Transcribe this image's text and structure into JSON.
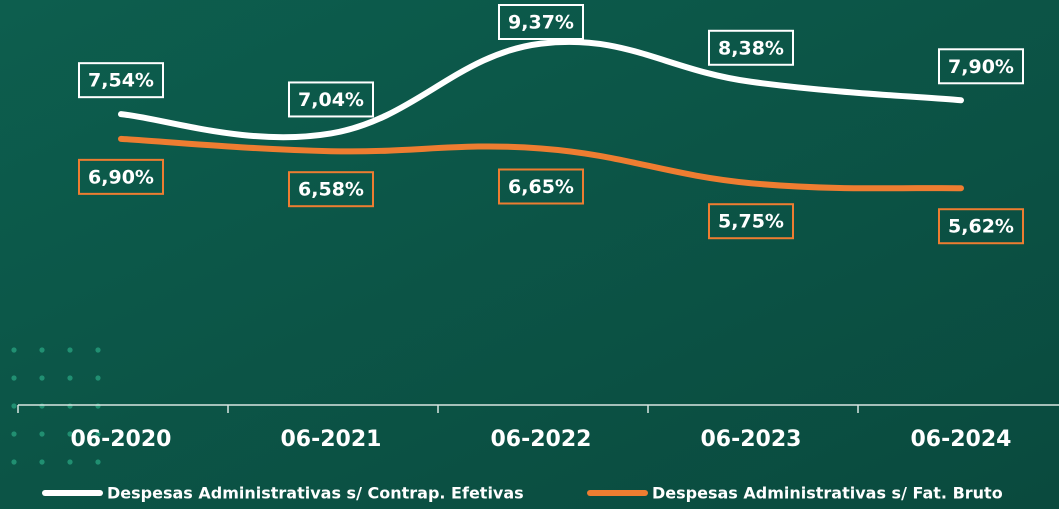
{
  "chart_data": {
    "type": "line",
    "categories": [
      "06-2020",
      "06-2021",
      "06-2022",
      "06-2023",
      "06-2024"
    ],
    "series": [
      {
        "name": "Despesas Administrativas s/ Contrap. Efetivas",
        "color": "#ffffff",
        "values": [
          7.54,
          7.04,
          9.37,
          8.38,
          7.9
        ],
        "value_labels": [
          "7,54%",
          "7,04%",
          "9,37%",
          "8,38%",
          "7,90%"
        ]
      },
      {
        "name": "Despesas Administrativas s/ Fat. Bruto",
        "color": "#ee7d31",
        "values": [
          6.9,
          6.58,
          6.65,
          5.75,
          5.62
        ],
        "value_labels": [
          "6,90%",
          "6,58%",
          "6,65%",
          "5,75%",
          "5,62%"
        ]
      }
    ],
    "ylim": [
      0,
      10.5
    ]
  }
}
